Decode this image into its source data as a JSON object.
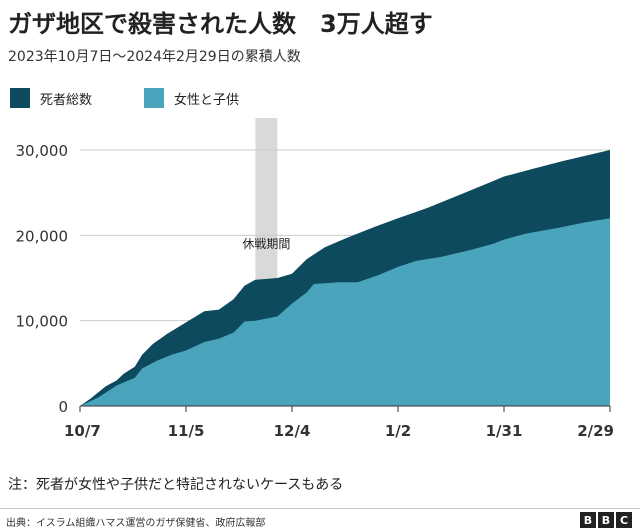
{
  "header": {
    "title": "ガザ地区で殺害された人数　3万人超す",
    "subtitle": "2023年10月7日～2024年2月29日の累積人数"
  },
  "colors": {
    "total": "#0d4a5e",
    "women_children": "#4aa5bc",
    "ceasefire": "#d9d9d9",
    "grid": "#cccccc"
  },
  "chart_data": {
    "type": "area",
    "x_axis_type": "date",
    "x_range": [
      "2023-10-07",
      "2024-02-29"
    ],
    "ylim": [
      0,
      30000
    ],
    "yticks": [
      0,
      10000,
      20000,
      30000
    ],
    "ytick_labels": [
      "0",
      "10,000",
      "20,000",
      "30,000"
    ],
    "xticks": [
      "2023-10-07",
      "2023-11-05",
      "2023-12-04",
      "2024-01-02",
      "2024-01-31",
      "2024-02-29"
    ],
    "xtick_labels": [
      "10/7",
      "11/5",
      "12/4",
      "1/2",
      "1/31",
      "2/29"
    ],
    "grid": true,
    "legend_position": "top-left",
    "ceasefire": {
      "start": "2023-11-24",
      "end": "2023-11-30",
      "label": "休戦期間"
    },
    "series": [
      {
        "name": "死者総数",
        "points": [
          [
            "2023-10-07",
            0
          ],
          [
            "2023-10-10",
            900
          ],
          [
            "2023-10-14",
            2300
          ],
          [
            "2023-10-17",
            3000
          ],
          [
            "2023-10-19",
            3800
          ],
          [
            "2023-10-22",
            4600
          ],
          [
            "2023-10-24",
            6000
          ],
          [
            "2023-10-27",
            7300
          ],
          [
            "2023-10-31",
            8500
          ],
          [
            "2023-11-05",
            9800
          ],
          [
            "2023-11-10",
            11100
          ],
          [
            "2023-11-14",
            11300
          ],
          [
            "2023-11-18",
            12500
          ],
          [
            "2023-11-21",
            14100
          ],
          [
            "2023-11-24",
            14800
          ],
          [
            "2023-11-30",
            15000
          ],
          [
            "2023-12-04",
            15500
          ],
          [
            "2023-12-08",
            17200
          ],
          [
            "2023-12-13",
            18600
          ],
          [
            "2023-12-19",
            19700
          ],
          [
            "2023-12-26",
            20900
          ],
          [
            "2024-01-02",
            22000
          ],
          [
            "2024-01-10",
            23200
          ],
          [
            "2024-01-18",
            24600
          ],
          [
            "2024-01-26",
            26000
          ],
          [
            "2024-01-31",
            26900
          ],
          [
            "2024-02-08",
            27800
          ],
          [
            "2024-02-16",
            28700
          ],
          [
            "2024-02-23",
            29400
          ],
          [
            "2024-02-29",
            30000
          ]
        ]
      },
      {
        "name": "女性と子供",
        "points": [
          [
            "2023-10-07",
            0
          ],
          [
            "2023-10-12",
            1000
          ],
          [
            "2023-10-17",
            2400
          ],
          [
            "2023-10-22",
            3300
          ],
          [
            "2023-10-24",
            4400
          ],
          [
            "2023-10-28",
            5300
          ],
          [
            "2023-11-01",
            6000
          ],
          [
            "2023-11-05",
            6500
          ],
          [
            "2023-11-10",
            7500
          ],
          [
            "2023-11-14",
            7900
          ],
          [
            "2023-11-18",
            8600
          ],
          [
            "2023-11-21",
            9900
          ],
          [
            "2023-11-24",
            10000
          ],
          [
            "2023-11-30",
            10500
          ],
          [
            "2023-12-04",
            12000
          ],
          [
            "2023-12-08",
            13300
          ],
          [
            "2023-12-10",
            14300
          ],
          [
            "2023-12-17",
            14500
          ],
          [
            "2023-12-22",
            14500
          ],
          [
            "2023-12-28",
            15400
          ],
          [
            "2024-01-02",
            16300
          ],
          [
            "2024-01-07",
            17000
          ],
          [
            "2024-01-14",
            17500
          ],
          [
            "2024-01-21",
            18200
          ],
          [
            "2024-01-28",
            19000
          ],
          [
            "2024-01-31",
            19500
          ],
          [
            "2024-02-06",
            20200
          ],
          [
            "2024-02-15",
            20900
          ],
          [
            "2024-02-22",
            21500
          ],
          [
            "2024-02-29",
            22000
          ]
        ]
      }
    ]
  },
  "note": "注：死者が女性や子供だと特記されないケースもある",
  "source": "出典：イスラム組織ハマス運営のガザ保健省、政府広報部",
  "brand": [
    "B",
    "B",
    "C"
  ]
}
